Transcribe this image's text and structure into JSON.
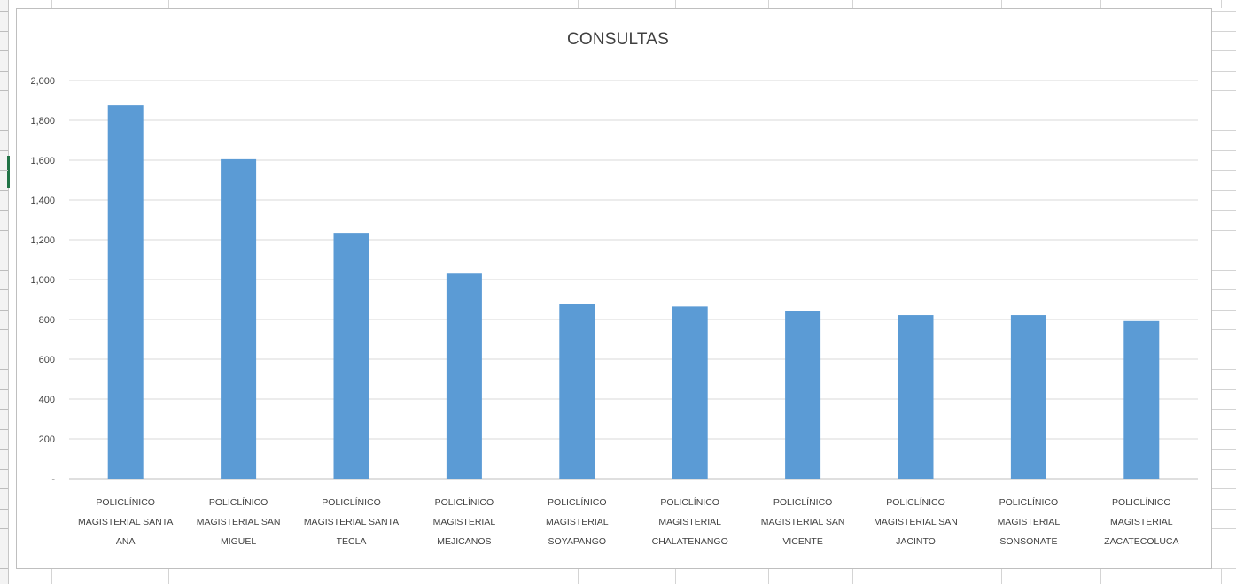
{
  "chart_data": {
    "type": "bar",
    "title": "CONSULTAS",
    "xlabel": "",
    "ylabel": "",
    "ylim": [
      0,
      2000
    ],
    "yticks": [
      "-",
      "200",
      "400",
      "600",
      "800",
      "1,000",
      "1,200",
      "1,400",
      "1,600",
      "1,800",
      "2,000"
    ],
    "grid": true,
    "legend": "none",
    "bar_color": "#5b9bd5",
    "categories": [
      [
        "POLICLÍNICO",
        "MAGISTERIAL SANTA",
        "ANA"
      ],
      [
        "POLICLÍNICO",
        "MAGISTERIAL SAN",
        "MIGUEL"
      ],
      [
        "POLICLÍNICO",
        "MAGISTERIAL SANTA",
        "TECLA"
      ],
      [
        "POLICLÍNICO",
        "MAGISTERIAL",
        "MEJICANOS"
      ],
      [
        "POLICLÍNICO",
        "MAGISTERIAL",
        "SOYAPANGO"
      ],
      [
        "POLICLÍNICO",
        "MAGISTERIAL",
        "CHALATENANGO"
      ],
      [
        "POLICLÍNICO",
        "MAGISTERIAL SAN",
        "VICENTE"
      ],
      [
        "POLICLÍNICO",
        "MAGISTERIAL SAN",
        "JACINTO"
      ],
      [
        "POLICLÍNICO",
        "MAGISTERIAL",
        "SONSONATE"
      ],
      [
        "POLICLÍNICO",
        "MAGISTERIAL",
        "ZACATECOLUCA"
      ]
    ],
    "values": [
      1875,
      1605,
      1235,
      1030,
      880,
      865,
      840,
      822,
      822,
      792
    ]
  }
}
